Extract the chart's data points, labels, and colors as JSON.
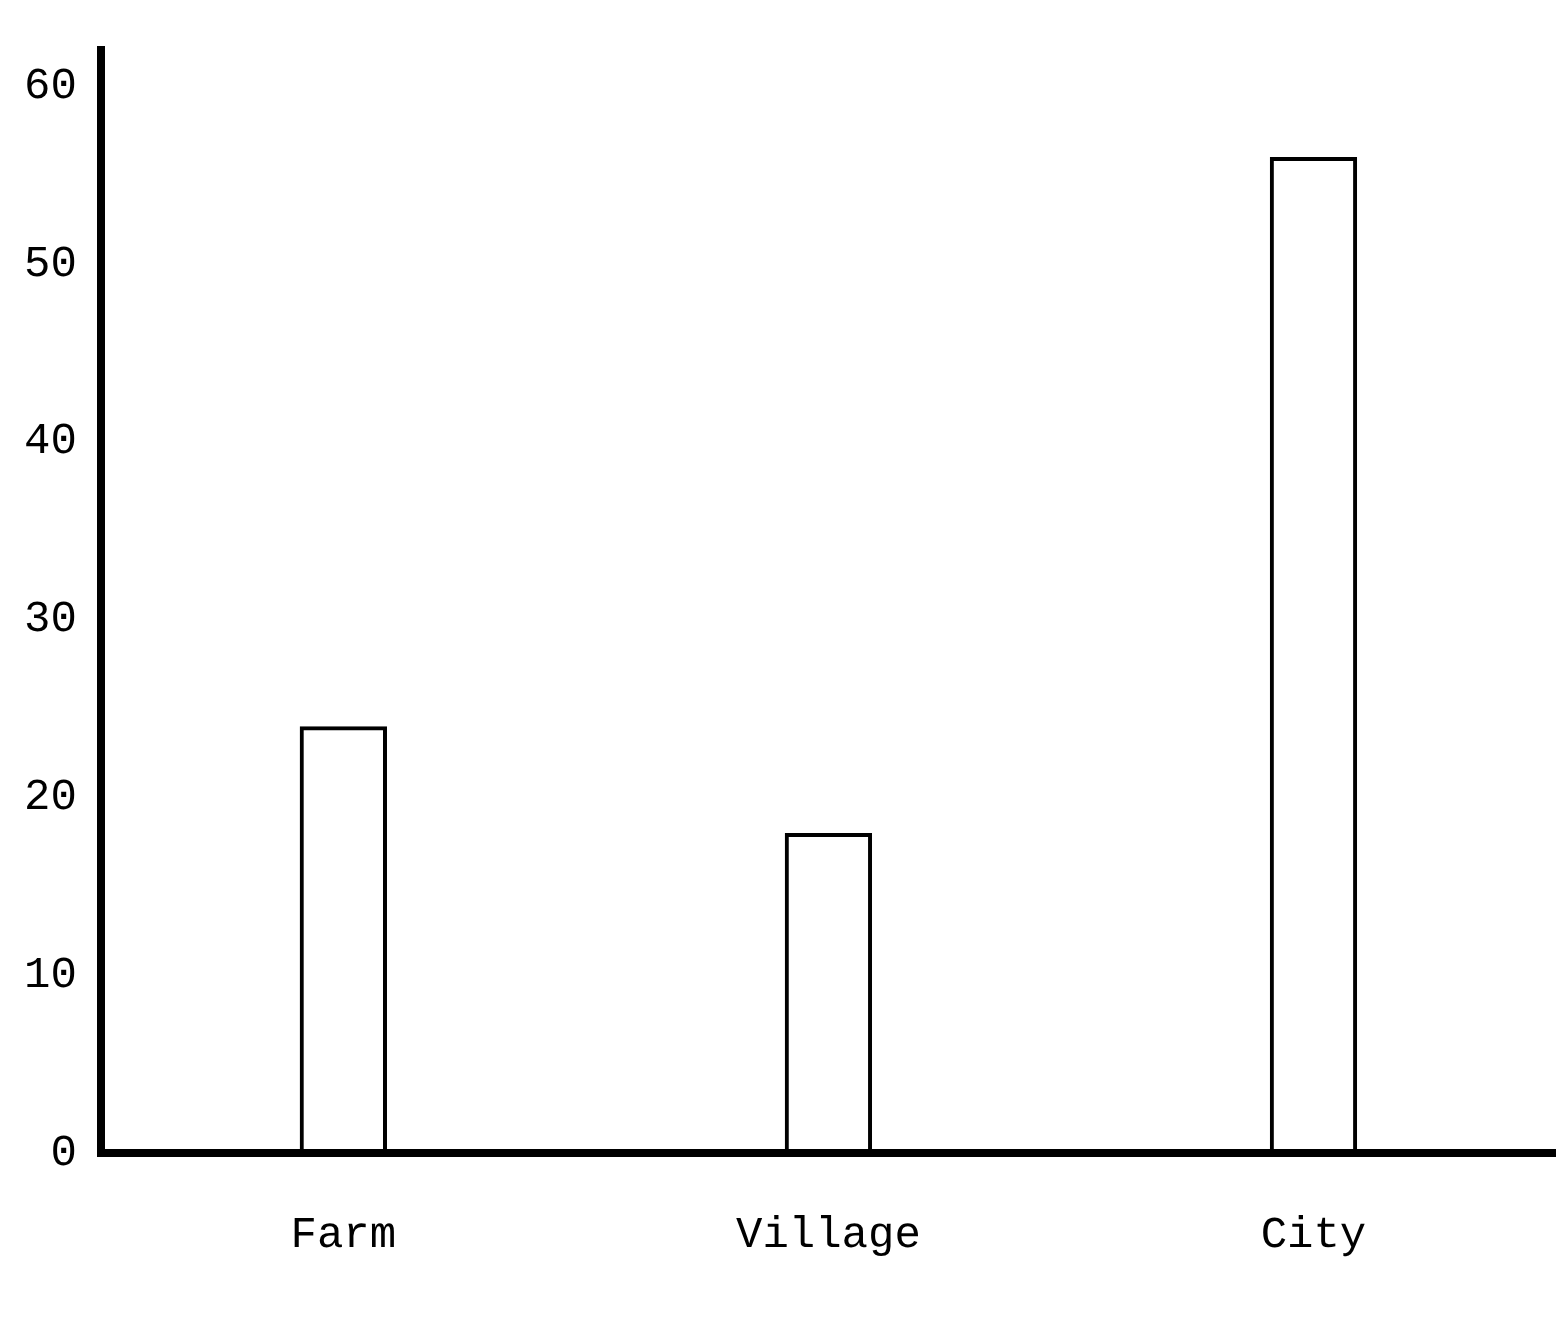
{
  "chart_data": {
    "type": "bar",
    "categories": [
      "Farm",
      "Village",
      "City"
    ],
    "values": [
      24,
      18,
      56
    ],
    "color": "#000000",
    "ylim": [
      0,
      62
    ],
    "yticks": [
      0,
      10,
      20,
      30,
      40,
      50,
      60
    ],
    "grid": false,
    "legend": false
  }
}
